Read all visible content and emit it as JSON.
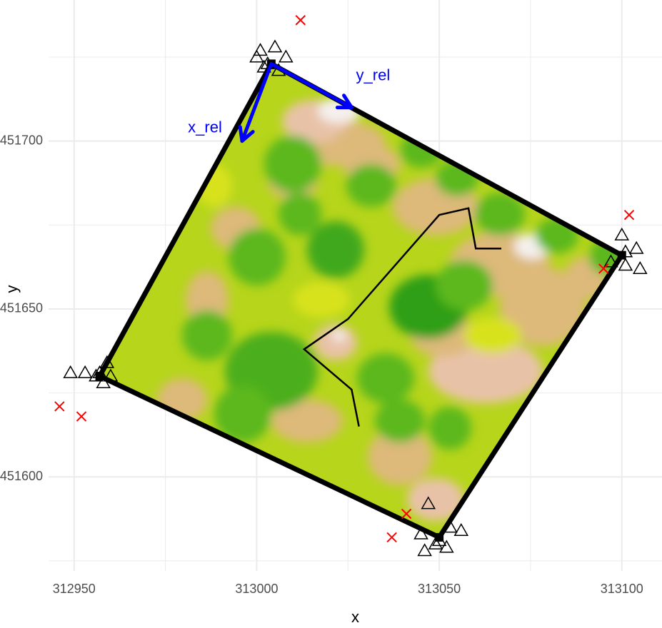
{
  "chart_data": {
    "type": "scatter",
    "xlabel": "x",
    "ylabel": "y",
    "xlim": [
      312943,
      313111
    ],
    "ylim": [
      451572,
      451742
    ],
    "x_ticks": [
      312950,
      313000,
      313050,
      313100
    ],
    "y_ticks": [
      451600,
      451650,
      451700
    ],
    "x_tick_labels": [
      "312950",
      "313000",
      "313050",
      "313100"
    ],
    "y_tick_labels": [
      "451600",
      "451650",
      "451700"
    ],
    "grid": true,
    "plot_corners": [
      {
        "x": 313004,
        "y": 451723
      },
      {
        "x": 313100,
        "y": 451666
      },
      {
        "x": 313050,
        "y": 451582
      },
      {
        "x": 312957,
        "y": 451630
      }
    ],
    "path_line": [
      {
        "x": 313067,
        "y": 451668
      },
      {
        "x": 313060,
        "y": 451668
      },
      {
        "x": 313058,
        "y": 451680
      },
      {
        "x": 313050,
        "y": 451678
      },
      {
        "x": 313025,
        "y": 451647
      },
      {
        "x": 313013,
        "y": 451638
      },
      {
        "x": 313026,
        "y": 451626
      },
      {
        "x": 313028,
        "y": 451615
      }
    ],
    "triangles": [
      {
        "x": 313001,
        "y": 451727
      },
      {
        "x": 313005,
        "y": 451728
      },
      {
        "x": 313000,
        "y": 451725
      },
      {
        "x": 313003,
        "y": 451723
      },
      {
        "x": 313008,
        "y": 451725
      },
      {
        "x": 313006,
        "y": 451721
      },
      {
        "x": 313002,
        "y": 451722
      },
      {
        "x": 313100,
        "y": 451672
      },
      {
        "x": 313104,
        "y": 451668
      },
      {
        "x": 313101,
        "y": 451667
      },
      {
        "x": 313097,
        "y": 451664
      },
      {
        "x": 313101,
        "y": 451663
      },
      {
        "x": 313105,
        "y": 451662
      },
      {
        "x": 312949,
        "y": 451631
      },
      {
        "x": 312953,
        "y": 451631
      },
      {
        "x": 312957,
        "y": 451631
      },
      {
        "x": 312959,
        "y": 451634
      },
      {
        "x": 312956,
        "y": 451630
      },
      {
        "x": 312960,
        "y": 451630
      },
      {
        "x": 312958,
        "y": 451628
      },
      {
        "x": 313047,
        "y": 451592
      },
      {
        "x": 313053,
        "y": 451585
      },
      {
        "x": 313056,
        "y": 451584
      },
      {
        "x": 313045,
        "y": 451583
      },
      {
        "x": 313049,
        "y": 451580
      },
      {
        "x": 313052,
        "y": 451579
      },
      {
        "x": 313046,
        "y": 451578
      },
      {
        "x": 313050,
        "y": 451581
      }
    ],
    "crosses": [
      {
        "x": 313012,
        "y": 451736
      },
      {
        "x": 313102,
        "y": 451678
      },
      {
        "x": 313095,
        "y": 451662
      },
      {
        "x": 312946,
        "y": 451621
      },
      {
        "x": 312952,
        "y": 451618
      },
      {
        "x": 313041,
        "y": 451589
      },
      {
        "x": 313037,
        "y": 451582
      }
    ],
    "arrows": [
      {
        "label": "x_rel",
        "from": {
          "x": 313004,
          "y": 451723
        },
        "to": {
          "x": 312996,
          "y": 451700
        }
      },
      {
        "label": "y_rel",
        "from": {
          "x": 313004,
          "y": 451723
        },
        "to": {
          "x": 313026,
          "y": 451710
        }
      }
    ],
    "colors": {
      "arrow": "#0000ff",
      "cross": "#ff0000",
      "outline": "#000000",
      "grid": "#ebebeb",
      "raster_base": "#b6d51b",
      "raster_dark_green": "#5cb81e",
      "raster_tan": "#ddb97a",
      "raster_pink": "#e8c2a7",
      "raster_white": "#f5f0ee"
    }
  }
}
